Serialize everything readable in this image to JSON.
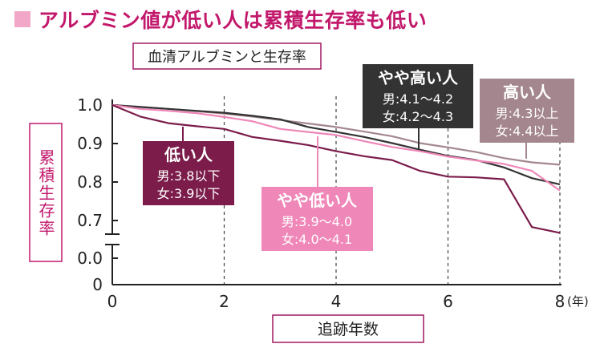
{
  "title": "アルブミン値が低い人は累積生存率も低い",
  "colors": {
    "title": "#c2186b",
    "title_square": "#f2a7c8",
    "low": "#7b1c4a",
    "mid_low": "#ef87b8",
    "mid_high": "#333333",
    "high": "#a4878e",
    "subtitle_border": "#a01860"
  },
  "chart_data": {
    "type": "line",
    "subtitle": "血清アルブミンと生存率",
    "ylabel": "累積生存率",
    "xlabel": "追跡年数",
    "x_unit": "(年)",
    "x_ticks": [
      "0",
      "2",
      "4",
      "6",
      "8"
    ],
    "y_ticks": [
      "0",
      "0.0",
      "0.7",
      "0.8",
      "0.9",
      "1.0"
    ],
    "xlim": [
      0,
      8
    ],
    "ylim_upper": [
      0.66,
      1.0
    ],
    "y_axis_break": true,
    "grid": "dashed vertical at x=2, 4, 6, 8",
    "series": [
      {
        "name": "低い人",
        "label_lines": [
          "男:3.8以下",
          "女:3.9以下"
        ],
        "x": [
          0,
          0.5,
          1,
          1.5,
          2,
          2.5,
          3,
          3.5,
          4,
          4.5,
          5,
          5.5,
          6,
          6.5,
          7,
          7.5,
          8
        ],
        "y": [
          1.0,
          0.97,
          0.953,
          0.945,
          0.938,
          0.917,
          0.907,
          0.896,
          0.88,
          0.867,
          0.857,
          0.829,
          0.814,
          0.812,
          0.807,
          0.683,
          0.668
        ]
      },
      {
        "name": "やや低い人",
        "label_lines": [
          "男:3.9〜4.0",
          "女:4.0〜4.1"
        ],
        "x": [
          0,
          0.5,
          1,
          1.5,
          2,
          2.5,
          3,
          3.5,
          4,
          4.5,
          5,
          5.5,
          6,
          6.5,
          7,
          7.5,
          8
        ],
        "y": [
          1.0,
          0.99,
          0.985,
          0.979,
          0.969,
          0.958,
          0.938,
          0.93,
          0.922,
          0.906,
          0.891,
          0.88,
          0.866,
          0.856,
          0.847,
          0.829,
          0.778
        ]
      },
      {
        "name": "やや高い人",
        "label_lines": [
          "男:4.1〜4.2",
          "女:4.2〜4.3"
        ],
        "x": [
          0,
          0.5,
          1,
          1.5,
          2,
          2.5,
          3,
          3.5,
          4,
          4.5,
          5,
          5.5,
          6,
          6.5,
          7,
          7.5,
          8
        ],
        "y": [
          1.0,
          0.995,
          0.99,
          0.985,
          0.98,
          0.972,
          0.963,
          0.943,
          0.93,
          0.917,
          0.901,
          0.884,
          0.868,
          0.857,
          0.838,
          0.81,
          0.794
        ]
      },
      {
        "name": "高い人",
        "label_lines": [
          "男:4.3以上",
          "女:4.4以上"
        ],
        "x": [
          0,
          0.5,
          1,
          1.5,
          2,
          2.5,
          3,
          3.5,
          4,
          4.5,
          5,
          5.5,
          6,
          6.5,
          7,
          7.5,
          8
        ],
        "y": [
          1.0,
          0.995,
          0.99,
          0.984,
          0.978,
          0.97,
          0.961,
          0.952,
          0.943,
          0.931,
          0.919,
          0.901,
          0.89,
          0.878,
          0.862,
          0.851,
          0.845
        ]
      }
    ]
  }
}
